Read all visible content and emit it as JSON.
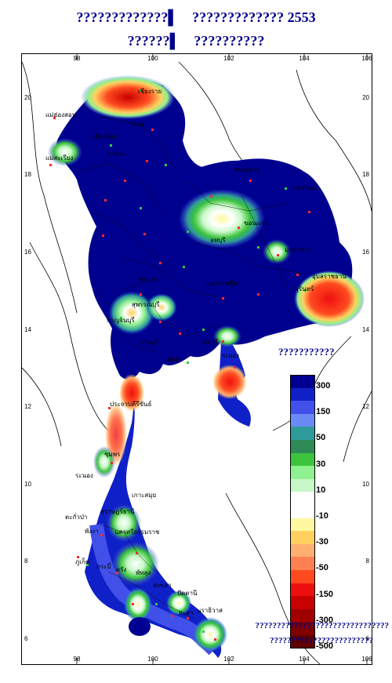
{
  "title": {
    "line1_part1": "?????????????▌",
    "line1_part2": "????????????? 2553",
    "line2_part1": "??????▌",
    "line2_part2": "??????????"
  },
  "axes": {
    "x_ticks": [
      "98",
      "100",
      "102",
      "104",
      "106"
    ],
    "y_ticks": [
      "20",
      "18",
      "16",
      "14",
      "12",
      "10",
      "8",
      "6"
    ]
  },
  "provinces": [
    "เชียงราย",
    "แม่ฮ่องสอน",
    "น่าน",
    "เชียงใหม่",
    "ลำปาง",
    "แม่สะเรียง",
    "หนองคาย",
    "นครพนม",
    "ขอนแก่น",
    "มุกดาหาร",
    "อุบลราชธานี",
    "สุรินทร์",
    "ลพบุรี",
    "นครราชสีมา",
    "ชัยนาท",
    "สุพรรณบุรี",
    "กาญจนบุรี",
    "ราชบุรี",
    "ชลบุรี",
    "ระยอง",
    "พัทยา",
    "ประจวบคีรีขันธ์",
    "ชุมพร",
    "ระนอง",
    "เกาะสมุย",
    "สุราษฎร์ธานี",
    "ตะกั่วป่า",
    "พังงา",
    "นครศรีธรรมราช",
    "ภูเก็ต",
    "กระบี่",
    "ตรัง",
    "พัทลุง",
    "สงขลา",
    "ปัตตานี",
    "ยะลา",
    "นราธิวาส"
  ],
  "legend": {
    "title": "???????????",
    "entries": [
      {
        "label": "300",
        "color": "#000090"
      },
      {
        "label": "",
        "color": "#1020c8"
      },
      {
        "label": "150",
        "color": "#4050e8"
      },
      {
        "label": "",
        "color": "#6a8af5"
      },
      {
        "label": "50",
        "color": "#2f9a9a"
      },
      {
        "label": "",
        "color": "#2e8b57"
      },
      {
        "label": "30",
        "color": "#3cc43c"
      },
      {
        "label": "",
        "color": "#8ef08e"
      },
      {
        "label": "10",
        "color": "#c8f8c8"
      },
      {
        "label": "",
        "color": "#ffffff"
      },
      {
        "label": "-10",
        "color": "#ffffff"
      },
      {
        "label": "",
        "color": "#fff8a0"
      },
      {
        "label": "-30",
        "color": "#ffd060"
      },
      {
        "label": "",
        "color": "#ffb070"
      },
      {
        "label": "-50",
        "color": "#ff8050"
      },
      {
        "label": "",
        "color": "#ff4a20"
      },
      {
        "label": "-150",
        "color": "#ee1010"
      },
      {
        "label": "",
        "color": "#c80000"
      },
      {
        "label": "-300",
        "color": "#a00000"
      },
      {
        "label": "",
        "color": "#800000"
      },
      {
        "label": "-500",
        "color": "#600000"
      }
    ]
  },
  "footnote": {
    "line1": "???????????????????????????????",
    "line2": "????????????????????????"
  }
}
